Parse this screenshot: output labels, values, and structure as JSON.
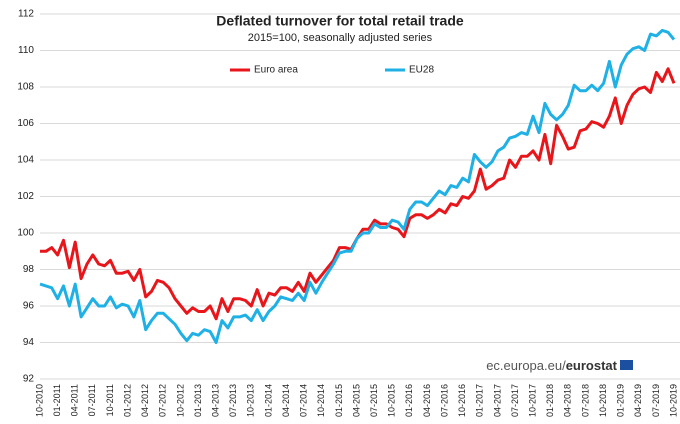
{
  "chart_data": {
    "type": "line",
    "title": "Deflated turnover for total retail trade",
    "subtitle": "2015=100, seasonally adjusted series",
    "source_prefix": "ec.europa.eu/",
    "source_brand": "eurostat",
    "categories": [
      "10-2010",
      null,
      null,
      "01-2011",
      null,
      null,
      "04-2011",
      null,
      null,
      "07-2011",
      null,
      null,
      "10-2011",
      null,
      null,
      "01-2012",
      null,
      null,
      "04-2012",
      null,
      null,
      "07-2012",
      null,
      null,
      "10-2012",
      null,
      null,
      "01-2013",
      null,
      null,
      "04-2013",
      null,
      null,
      "07-2013",
      null,
      null,
      "10-2013",
      null,
      null,
      "01-2014",
      null,
      null,
      "04-2014",
      null,
      null,
      "07-2014",
      null,
      null,
      "10-2014",
      null,
      null,
      "01-2015",
      null,
      null,
      "04-2015",
      null,
      null,
      "07-2015",
      null,
      null,
      "10-2015",
      null,
      null,
      "01-2016",
      null,
      null,
      "04-2016",
      null,
      null,
      "07-2016",
      null,
      null,
      "10-2016",
      null,
      null,
      "01-2017",
      null,
      null,
      "04-2017",
      null,
      null,
      "07-2017",
      null,
      null,
      "10-2017",
      null,
      null,
      "01-2018",
      null,
      null,
      "04-2018",
      null,
      null,
      "07-2018",
      null,
      null,
      "10-2018",
      null,
      null,
      "01-2019",
      null,
      null,
      "04-2019",
      null,
      null,
      "07-2019",
      null,
      null,
      "10-2019"
    ],
    "series": [
      {
        "name": "Euro area",
        "color": "#e8161b",
        "values": [
          99.0,
          99.0,
          99.2,
          98.8,
          99.6,
          98.1,
          99.5,
          97.5,
          98.3,
          98.8,
          98.3,
          98.2,
          98.5,
          97.8,
          97.8,
          97.9,
          97.4,
          98.0,
          96.5,
          96.8,
          97.4,
          97.3,
          97.0,
          96.4,
          96.0,
          95.6,
          95.9,
          95.7,
          95.7,
          96.0,
          95.3,
          96.4,
          95.7,
          96.4,
          96.4,
          96.3,
          96.0,
          96.9,
          96.0,
          96.7,
          96.6,
          97.0,
          97.0,
          96.8,
          97.3,
          96.8,
          97.8,
          97.3,
          97.7,
          98.1,
          98.5,
          99.2,
          99.2,
          99.1,
          99.7,
          100.2,
          100.2,
          100.7,
          100.5,
          100.5,
          100.3,
          100.2,
          99.8,
          100.8,
          101.0,
          101.0,
          100.8,
          101.0,
          101.3,
          101.1,
          101.6,
          101.5,
          102.0,
          101.9,
          102.3,
          103.5,
          102.4,
          102.6,
          102.9,
          103.0,
          104.0,
          103.6,
          104.2,
          104.2,
          104.5,
          104.0,
          105.4,
          103.8,
          105.9,
          105.3,
          104.6,
          104.7,
          105.6,
          105.7,
          106.1,
          106.0,
          105.8,
          106.4,
          107.4,
          106.0,
          107.0,
          107.6,
          107.9,
          108.0,
          107.7,
          108.8,
          108.3,
          109.0,
          108.2
        ]
      },
      {
        "name": "EU28",
        "color": "#1fb1e6",
        "values": [
          97.2,
          97.1,
          97.0,
          96.4,
          97.1,
          96.0,
          97.2,
          95.4,
          95.9,
          96.4,
          96.0,
          96.0,
          96.5,
          95.9,
          96.1,
          96.0,
          95.4,
          96.3,
          94.7,
          95.2,
          95.6,
          95.6,
          95.3,
          95.0,
          94.5,
          94.1,
          94.5,
          94.4,
          94.7,
          94.6,
          94.0,
          95.2,
          94.8,
          95.4,
          95.4,
          95.5,
          95.2,
          95.8,
          95.2,
          95.7,
          96.0,
          96.5,
          96.4,
          96.3,
          96.7,
          96.3,
          97.3,
          96.7,
          97.3,
          97.8,
          98.3,
          98.9,
          99.0,
          99.0,
          99.7,
          100.0,
          100.0,
          100.5,
          100.3,
          100.3,
          100.7,
          100.6,
          100.2,
          101.3,
          101.7,
          101.7,
          101.5,
          101.9,
          102.3,
          102.1,
          102.6,
          102.5,
          103.0,
          102.8,
          104.3,
          103.9,
          103.6,
          103.9,
          104.5,
          104.7,
          105.2,
          105.3,
          105.5,
          105.4,
          106.4,
          105.5,
          107.1,
          106.5,
          106.2,
          106.5,
          107.0,
          108.1,
          107.8,
          107.8,
          108.1,
          107.8,
          108.2,
          109.4,
          108.0,
          109.2,
          109.8,
          110.1,
          110.2,
          110.0,
          110.9,
          110.8,
          111.1,
          111.0,
          110.6
        ]
      }
    ],
    "ylim": [
      92,
      112
    ],
    "yticks": [
      92,
      94,
      96,
      98,
      100,
      102,
      104,
      106,
      108,
      110,
      112
    ],
    "grid": true
  }
}
